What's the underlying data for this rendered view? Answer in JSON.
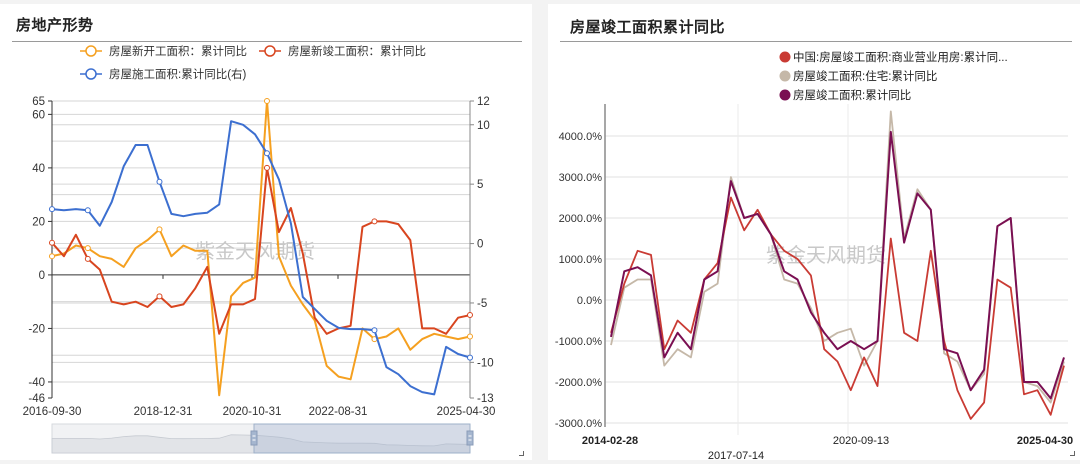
{
  "left_panel": {
    "title": "房地产形势",
    "legend": [
      {
        "label": "房屋新开工面积：累计同比",
        "color": "#f5a020"
      },
      {
        "label": "房屋新竣工面积：累计同比",
        "color": "#d8451f"
      },
      {
        "label": "房屋施工面积:累计同比(右)",
        "color": "#3c6fd0"
      }
    ],
    "watermark": "紫金天风期货",
    "y_left_ticks": [
      "65",
      "60",
      "40",
      "20",
      "0",
      "-20",
      "-40",
      "-46"
    ],
    "y_right_ticks": [
      "12",
      "10",
      "5",
      "0",
      "-5",
      "-10",
      "-13"
    ],
    "x_ticks": [
      "2016-09-30",
      "2018-12-31",
      "2020-10-31",
      "2022-08-31",
      "2025-04-30"
    ],
    "datazoom": {
      "start_pct": 50,
      "end_pct": 100
    }
  },
  "right_panel": {
    "title": "房屋竣工面积累计同比",
    "legend": [
      {
        "label": "中国:房屋竣工面积:商业营业用房:累计同...",
        "color": "#c93b34"
      },
      {
        "label": "房屋竣工面积:住宅:累计同比",
        "color": "#c5b8a8"
      },
      {
        "label": "房屋竣工面积:累计同比",
        "color": "#7a0f52"
      }
    ],
    "watermark": "紫金天风期货",
    "y_ticks": [
      "4000.0%",
      "3000.0%",
      "2000.0%",
      "1000.0%",
      "0.0%",
      "-1000.0%",
      "-2000.0%",
      "-3000.0%"
    ],
    "x_ticks": [
      "2014-02-28",
      "2017-07-14",
      "2020-09-13",
      "2025-04-30"
    ]
  },
  "chart_data": [
    {
      "type": "line",
      "title": "房地产形势",
      "xlabel": "",
      "ylabel": "",
      "ylim": [
        -46,
        65
      ],
      "y2lim": [
        -13,
        12
      ],
      "grid": true,
      "legend_position": "top",
      "x_ticks": [
        "2016-09-30",
        "2018-12-31",
        "2020-10-31",
        "2022-08-31",
        "2025-04-30"
      ],
      "x": [
        "2016-09",
        "2016-12",
        "2017-03",
        "2017-06",
        "2017-09",
        "2017-12",
        "2018-03",
        "2018-06",
        "2018-09",
        "2018-12",
        "2019-03",
        "2019-06",
        "2019-09",
        "2019-12",
        "2020-03",
        "2020-06",
        "2020-09",
        "2020-12",
        "2021-03",
        "2021-06",
        "2021-09",
        "2021-12",
        "2022-03",
        "2022-06",
        "2022-09",
        "2022-12",
        "2023-03",
        "2023-06",
        "2023-09",
        "2023-12",
        "2024-03",
        "2024-06",
        "2024-09",
        "2024-12",
        "2025-03",
        "2025-04"
      ],
      "series": [
        {
          "name": "房屋新开工面积：累计同比",
          "axis": "left",
          "values": [
            7,
            8,
            11,
            10,
            7,
            6,
            3,
            10,
            13,
            17,
            7,
            11,
            9,
            9,
            -45,
            -8,
            -3,
            -1,
            65,
            7,
            -4,
            -11,
            -17,
            -34,
            -38,
            -39,
            -20,
            -24,
            -23,
            -20,
            -28,
            -24,
            -22,
            -23,
            -24,
            -23
          ]
        },
        {
          "name": "房屋新竣工面积：累计同比",
          "axis": "left",
          "values": [
            12,
            7,
            15,
            6,
            2,
            -10,
            -11,
            -10,
            -12,
            -8,
            -12,
            -11,
            -5,
            3,
            -22,
            -11,
            -11,
            -9,
            40,
            16,
            25,
            8,
            -16,
            -22,
            -20,
            -19,
            18,
            20,
            20,
            19,
            13,
            -20,
            -20,
            -22,
            -16,
            -15
          ]
        },
        {
          "name": "房屋施工面积:累计同比(右)",
          "axis": "right",
          "values": [
            2.9,
            2.8,
            2.9,
            2.8,
            1.5,
            3.5,
            6.5,
            8.3,
            8.3,
            5.2,
            2.5,
            2.3,
            2.5,
            2.6,
            3.3,
            10.3,
            10.0,
            9.2,
            7.6,
            5.4,
            1.7,
            -4.5,
            -5.5,
            -6.5,
            -7.1,
            -7.2,
            -7.2,
            -7.3,
            -10.4,
            -11.0,
            -12.0,
            -12.5,
            -12.7,
            -8.7,
            -9.3,
            -9.6
          ]
        }
      ]
    },
    {
      "type": "line",
      "title": "房屋竣工面积累计同比",
      "xlabel": "",
      "ylabel": "",
      "ylim": [
        -3000,
        4500
      ],
      "y_unit": "%",
      "grid": true,
      "legend_position": "top-right",
      "x_ticks": [
        "2014-02-28",
        "2017-07-14",
        "2020-09-13",
        "2025-04-30"
      ],
      "x": [
        "2014-02",
        "2014-06",
        "2014-10",
        "2015-02",
        "2015-06",
        "2015-10",
        "2016-02",
        "2016-06",
        "2016-10",
        "2017-02",
        "2017-06",
        "2017-10",
        "2018-02",
        "2018-06",
        "2018-10",
        "2019-02",
        "2019-06",
        "2019-10",
        "2020-02",
        "2020-06",
        "2020-10",
        "2021-02",
        "2021-06",
        "2021-10",
        "2022-02",
        "2022-06",
        "2022-10",
        "2023-02",
        "2023-06",
        "2023-10",
        "2024-02",
        "2024-06",
        "2024-10",
        "2025-02",
        "2025-04"
      ],
      "series": [
        {
          "name": "中国:房屋竣工面积:商业营业用房:累计同比",
          "values": [
            -800,
            400,
            1200,
            1100,
            -1200,
            -500,
            -800,
            500,
            900,
            2500,
            1700,
            2200,
            1600,
            1200,
            1000,
            600,
            -1200,
            -1500,
            -2200,
            -1400,
            -2100,
            1500,
            -800,
            -1000,
            1200,
            -1000,
            -2200,
            -2900,
            -2500,
            500,
            300,
            -2300,
            -2200,
            -2800,
            -1600
          ]
        },
        {
          "name": "房屋竣工面积:住宅:累计同比",
          "values": [
            -1100,
            300,
            500,
            500,
            -1600,
            -1200,
            -1400,
            200,
            400,
            3000,
            2000,
            2100,
            1600,
            500,
            400,
            -200,
            -1000,
            -800,
            -700,
            -1600,
            -1000,
            4600,
            1500,
            2700,
            2200,
            -1300,
            -1500,
            -2200,
            -1800,
            1800,
            2000,
            -2000,
            -2100,
            -2500,
            -1500
          ]
        },
        {
          "name": "房屋竣工面积:累计同比",
          "values": [
            -900,
            700,
            800,
            600,
            -1400,
            -800,
            -1200,
            500,
            700,
            2900,
            2000,
            2100,
            1600,
            700,
            500,
            -300,
            -800,
            -1200,
            -1000,
            -1200,
            -1000,
            4100,
            1400,
            2600,
            2200,
            -1200,
            -1300,
            -2200,
            -1700,
            1800,
            2000,
            -2000,
            -2000,
            -2400,
            -1400
          ]
        }
      ]
    }
  ]
}
